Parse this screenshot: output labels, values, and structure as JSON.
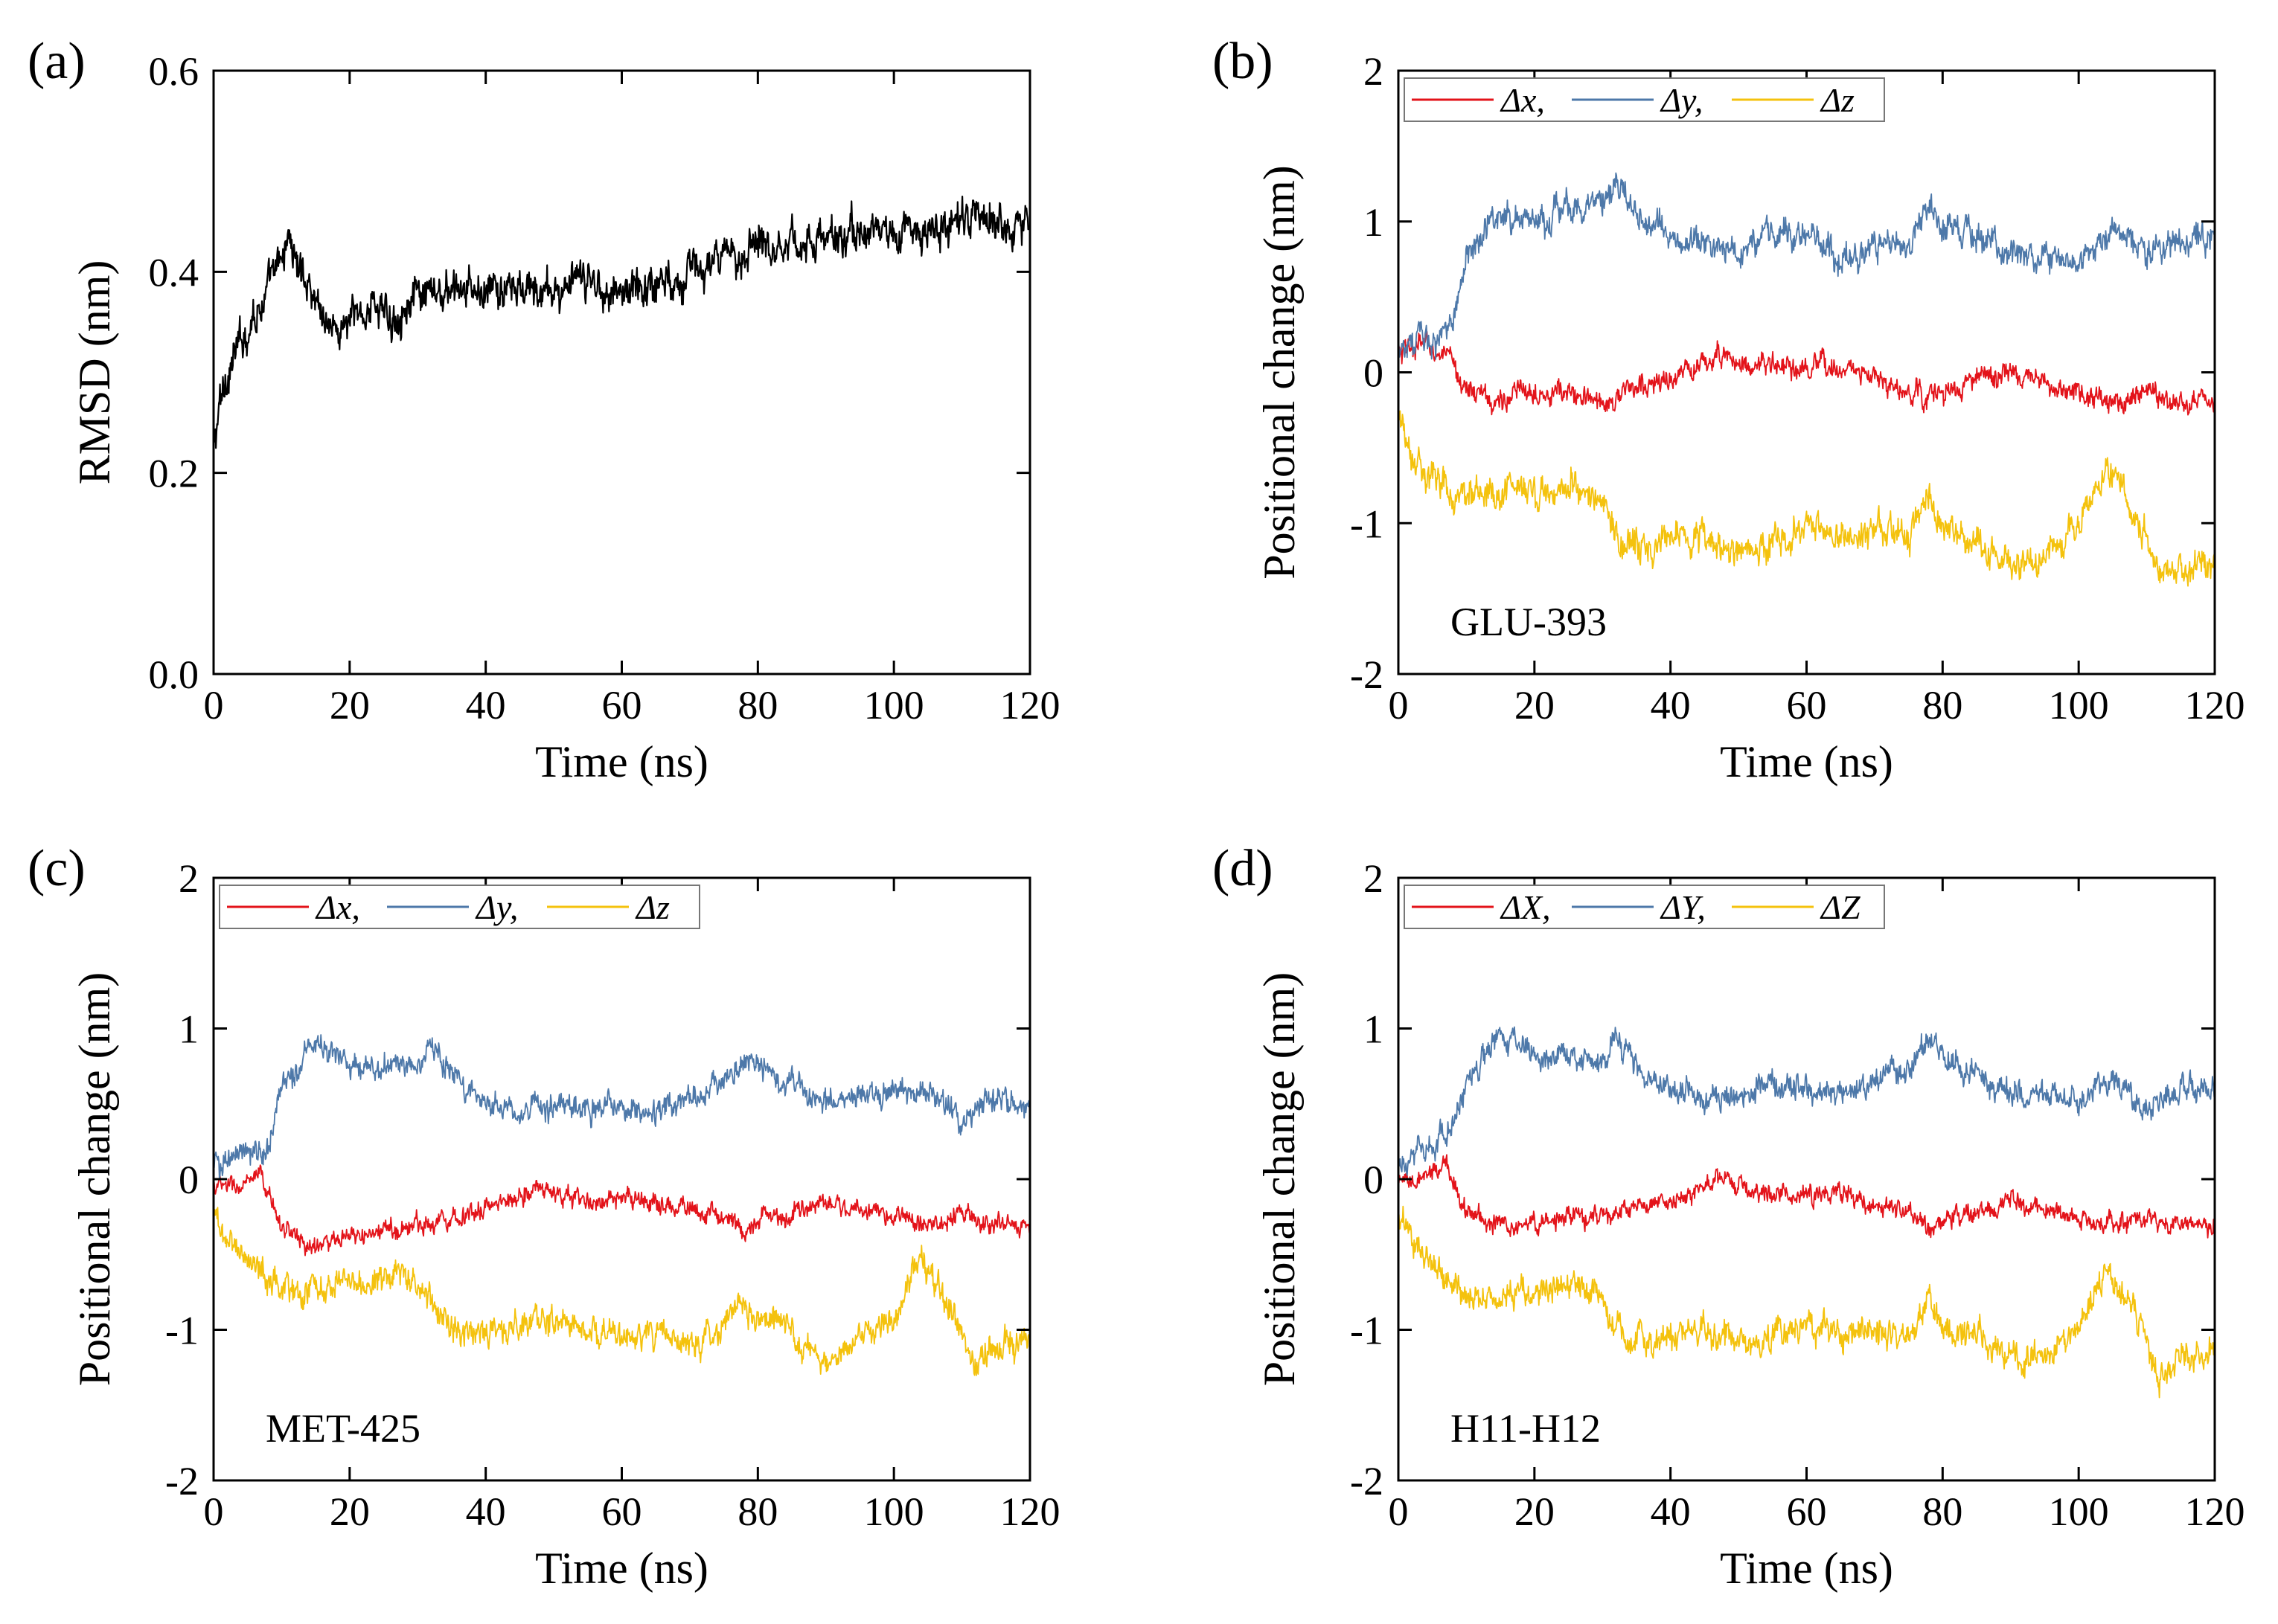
{
  "colors": {
    "x": "#e3131a",
    "y": "#4d78a9",
    "z": "#f4c20d",
    "rmsd": "#000000"
  },
  "chart_data": [
    {
      "type": "line",
      "panel_label": "(a)",
      "xlabel": "Time (ns)",
      "ylabel": "RMSD (nm)",
      "xlim": [
        0,
        120
      ],
      "ylim": [
        0,
        0.6
      ],
      "xticks": [
        0,
        20,
        40,
        60,
        80,
        100,
        120
      ],
      "xtick_labels": [
        "0",
        "20",
        "40",
        "60",
        "80",
        "100",
        "120"
      ],
      "yticks": [
        0,
        0.2,
        0.4,
        0.6
      ],
      "ytick_labels": [
        "0.0",
        "0.2",
        "0.4",
        "0.6"
      ],
      "annotation": "",
      "legend": [],
      "series": [
        {
          "key": "rmsd",
          "color": "#000000",
          "noise": 0.018,
          "x": [
            0,
            1,
            2,
            4,
            6,
            8,
            10,
            11,
            12,
            14,
            16,
            18,
            20,
            22,
            24,
            26,
            28,
            30,
            35,
            40,
            45,
            50,
            55,
            60,
            65,
            70,
            75,
            78,
            80,
            82,
            85,
            90,
            95,
            100,
            105,
            110,
            115,
            120
          ],
          "y": [
            0.22,
            0.27,
            0.3,
            0.33,
            0.36,
            0.38,
            0.41,
            0.44,
            0.41,
            0.39,
            0.36,
            0.34,
            0.35,
            0.36,
            0.37,
            0.35,
            0.37,
            0.37,
            0.38,
            0.38,
            0.38,
            0.38,
            0.39,
            0.38,
            0.39,
            0.4,
            0.41,
            0.42,
            0.44,
            0.43,
            0.43,
            0.43,
            0.44,
            0.44,
            0.44,
            0.45,
            0.45,
            0.45
          ]
        }
      ]
    },
    {
      "type": "line",
      "panel_label": "(b)",
      "xlabel": "Time (ns)",
      "ylabel": "Positional change (nm)",
      "xlim": [
        0,
        120
      ],
      "ylim": [
        -2,
        2
      ],
      "xticks": [
        0,
        20,
        40,
        60,
        80,
        100,
        120
      ],
      "xtick_labels": [
        "0",
        "20",
        "40",
        "60",
        "80",
        "100",
        "120"
      ],
      "yticks": [
        -2,
        -1,
        0,
        1,
        2
      ],
      "ytick_labels": [
        "-2",
        "-1",
        "0",
        "1",
        "2"
      ],
      "annotation": "GLU-393",
      "legend": [
        "Δx,",
        "Δy,",
        "Δz"
      ],
      "series": [
        {
          "key": "x",
          "color": "#e3131a",
          "noise": 0.07,
          "x": [
            0,
            4,
            8,
            10,
            14,
            20,
            25,
            30,
            35,
            40,
            45,
            48,
            50,
            55,
            60,
            65,
            70,
            75,
            80,
            85,
            90,
            95,
            100,
            105,
            110,
            115,
            120
          ],
          "y": [
            0.1,
            0.2,
            0.05,
            -0.1,
            -0.2,
            -0.1,
            -0.15,
            -0.2,
            -0.1,
            -0.05,
            0.05,
            0.15,
            0.05,
            0.05,
            0.0,
            0.05,
            -0.05,
            -0.15,
            -0.15,
            -0.05,
            0.0,
            -0.1,
            -0.15,
            -0.2,
            -0.1,
            -0.2,
            -0.2
          ]
        },
        {
          "key": "y",
          "color": "#4d78a9",
          "noise": 0.09,
          "x": [
            0,
            5,
            8,
            10,
            15,
            20,
            25,
            30,
            32,
            35,
            40,
            45,
            50,
            55,
            60,
            65,
            70,
            75,
            78,
            80,
            85,
            90,
            95,
            100,
            105,
            110,
            115,
            120
          ],
          "y": [
            0.2,
            0.2,
            0.3,
            0.8,
            1.05,
            1.0,
            1.1,
            1.1,
            1.25,
            1.05,
            0.9,
            0.85,
            0.8,
            0.95,
            0.9,
            0.75,
            0.85,
            0.9,
            1.1,
            0.95,
            0.95,
            0.8,
            0.75,
            0.7,
            0.95,
            0.8,
            0.85,
            0.9
          ]
        },
        {
          "key": "z",
          "color": "#f4c20d",
          "noise": 0.1,
          "x": [
            0,
            2,
            5,
            10,
            15,
            20,
            25,
            30,
            32,
            35,
            40,
            45,
            50,
            55,
            60,
            65,
            70,
            75,
            78,
            80,
            85,
            90,
            95,
            100,
            104,
            106,
            110,
            112,
            115,
            120
          ],
          "y": [
            -0.3,
            -0.5,
            -0.7,
            -0.85,
            -0.8,
            -0.8,
            -0.75,
            -0.8,
            -1.1,
            -1.2,
            -1.15,
            -1.1,
            -1.2,
            -1.15,
            -1.0,
            -1.1,
            -1.05,
            -1.1,
            -0.8,
            -1.05,
            -1.1,
            -1.25,
            -1.2,
            -1.05,
            -0.6,
            -0.75,
            -1.1,
            -1.4,
            -1.3,
            -1.25
          ]
        }
      ]
    },
    {
      "type": "line",
      "panel_label": "(c)",
      "xlabel": "Time (ns)",
      "ylabel": "Positional change (nm)",
      "xlim": [
        0,
        120
      ],
      "ylim": [
        -2,
        2
      ],
      "xticks": [
        0,
        20,
        40,
        60,
        80,
        100,
        120
      ],
      "xtick_labels": [
        "0",
        "20",
        "40",
        "60",
        "80",
        "100",
        "120"
      ],
      "yticks": [
        -2,
        -1,
        0,
        1,
        2
      ],
      "ytick_labels": [
        "-2",
        "-1",
        "0",
        "1",
        "2"
      ],
      "annotation": "MET-425",
      "legend": [
        "Δx,",
        "Δy,",
        "Δz"
      ],
      "series": [
        {
          "key": "x",
          "color": "#e3131a",
          "noise": 0.06,
          "x": [
            0,
            4,
            7,
            10,
            14,
            20,
            25,
            30,
            35,
            40,
            45,
            48,
            50,
            55,
            60,
            65,
            70,
            75,
            78,
            80,
            85,
            90,
            95,
            100,
            105,
            110,
            115,
            120
          ],
          "y": [
            -0.05,
            -0.05,
            0.0,
            -0.3,
            -0.45,
            -0.4,
            -0.35,
            -0.3,
            -0.25,
            -0.2,
            -0.1,
            -0.05,
            -0.1,
            -0.15,
            -0.15,
            -0.15,
            -0.2,
            -0.25,
            -0.35,
            -0.25,
            -0.25,
            -0.15,
            -0.2,
            -0.25,
            -0.3,
            -0.25,
            -0.3,
            -0.3
          ]
        },
        {
          "key": "y",
          "color": "#4d78a9",
          "noise": 0.08,
          "x": [
            0,
            4,
            8,
            10,
            15,
            20,
            25,
            30,
            32,
            35,
            40,
            45,
            50,
            55,
            60,
            65,
            70,
            75,
            78,
            80,
            85,
            90,
            95,
            100,
            105,
            110,
            115,
            120
          ],
          "y": [
            0.1,
            0.15,
            0.2,
            0.6,
            0.9,
            0.8,
            0.75,
            0.75,
            0.9,
            0.7,
            0.5,
            0.45,
            0.45,
            0.5,
            0.45,
            0.45,
            0.55,
            0.65,
            0.8,
            0.8,
            0.6,
            0.5,
            0.55,
            0.55,
            0.6,
            0.4,
            0.55,
            0.5
          ]
        },
        {
          "key": "z",
          "color": "#f4c20d",
          "noise": 0.09,
          "x": [
            0,
            3,
            6,
            10,
            15,
            20,
            25,
            30,
            35,
            40,
            45,
            50,
            55,
            60,
            65,
            70,
            75,
            77,
            80,
            85,
            90,
            95,
            100,
            104,
            106,
            110,
            112,
            115,
            120
          ],
          "y": [
            -0.25,
            -0.45,
            -0.55,
            -0.75,
            -0.7,
            -0.7,
            -0.65,
            -0.7,
            -1.0,
            -1.05,
            -0.95,
            -0.95,
            -1.0,
            -1.05,
            -1.0,
            -1.1,
            -0.95,
            -0.75,
            -0.95,
            -1.0,
            -1.2,
            -1.05,
            -0.95,
            -0.5,
            -0.7,
            -1.0,
            -1.3,
            -1.1,
            -1.05
          ]
        }
      ]
    },
    {
      "type": "line",
      "panel_label": "(d)",
      "xlabel": "Time (ns)",
      "ylabel": "Positional change (nm)",
      "xlim": [
        0,
        120
      ],
      "ylim": [
        -2,
        2
      ],
      "xticks": [
        0,
        20,
        40,
        60,
        80,
        100,
        120
      ],
      "xtick_labels": [
        "0",
        "20",
        "40",
        "60",
        "80",
        "100",
        "120"
      ],
      "yticks": [
        -2,
        -1,
        0,
        1,
        2
      ],
      "ytick_labels": [
        "-2",
        "-1",
        "0",
        "1",
        "2"
      ],
      "annotation": "H11-H12",
      "legend": [
        "ΔX,",
        "ΔY,",
        "ΔZ"
      ],
      "series": [
        {
          "key": "x",
          "color": "#e3131a",
          "noise": 0.06,
          "x": [
            0,
            4,
            7,
            10,
            14,
            20,
            25,
            30,
            35,
            40,
            45,
            48,
            50,
            55,
            60,
            65,
            70,
            75,
            78,
            80,
            85,
            90,
            95,
            100,
            105,
            110,
            115,
            120
          ],
          "y": [
            -0.05,
            0.0,
            0.1,
            -0.2,
            -0.3,
            -0.3,
            -0.25,
            -0.25,
            -0.2,
            -0.15,
            -0.05,
            0.0,
            -0.05,
            -0.1,
            -0.1,
            -0.1,
            -0.15,
            -0.2,
            -0.35,
            -0.25,
            -0.25,
            -0.15,
            -0.2,
            -0.25,
            -0.3,
            -0.25,
            -0.3,
            -0.3
          ]
        },
        {
          "key": "y",
          "color": "#4d78a9",
          "noise": 0.08,
          "x": [
            0,
            4,
            8,
            10,
            15,
            20,
            25,
            30,
            32,
            35,
            40,
            45,
            50,
            55,
            60,
            65,
            70,
            75,
            78,
            80,
            85,
            90,
            95,
            100,
            105,
            110,
            115,
            120
          ],
          "y": [
            0.15,
            0.2,
            0.3,
            0.65,
            0.95,
            0.85,
            0.8,
            0.8,
            0.95,
            0.75,
            0.6,
            0.55,
            0.55,
            0.65,
            0.6,
            0.55,
            0.65,
            0.75,
            0.9,
            0.8,
            0.7,
            0.55,
            0.55,
            0.5,
            0.65,
            0.45,
            0.6,
            0.6
          ]
        },
        {
          "key": "z",
          "color": "#f4c20d",
          "noise": 0.09,
          "x": [
            0,
            3,
            6,
            10,
            15,
            20,
            25,
            30,
            32,
            35,
            40,
            45,
            50,
            55,
            60,
            65,
            70,
            75,
            78,
            80,
            85,
            90,
            95,
            100,
            104,
            106,
            110,
            112,
            115,
            120
          ],
          "y": [
            -0.25,
            -0.45,
            -0.6,
            -0.8,
            -0.75,
            -0.75,
            -0.7,
            -0.75,
            -1.0,
            -1.1,
            -1.05,
            -1.0,
            -1.1,
            -1.05,
            -0.95,
            -1.05,
            -1.0,
            -1.05,
            -0.8,
            -1.0,
            -1.05,
            -1.2,
            -1.15,
            -1.0,
            -0.6,
            -0.75,
            -1.05,
            -1.35,
            -1.2,
            -1.15
          ]
        }
      ]
    }
  ]
}
